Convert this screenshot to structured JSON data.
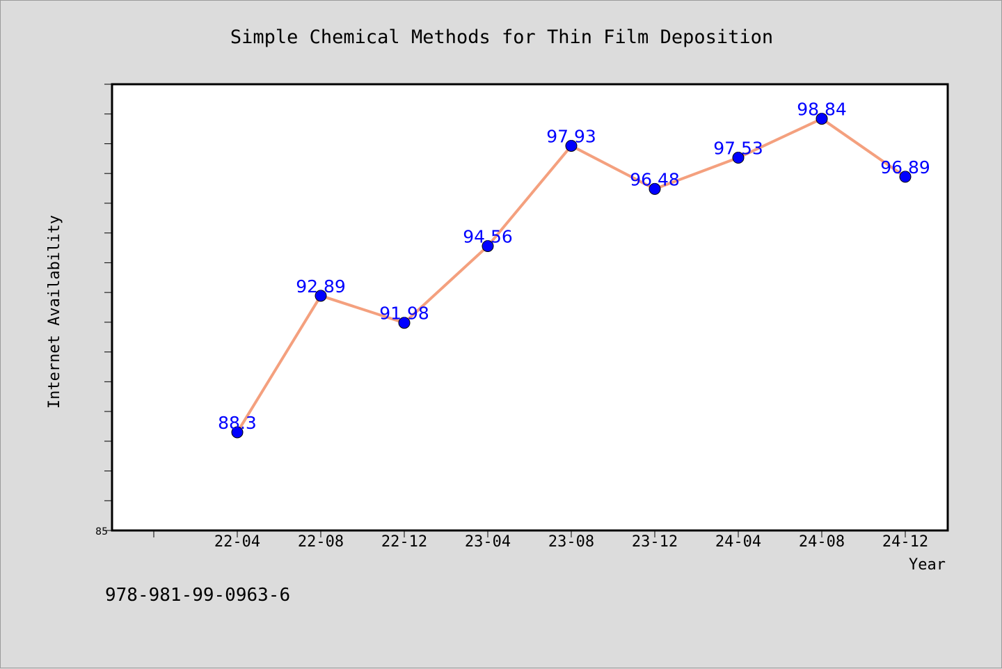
{
  "chart_data": {
    "type": "line",
    "title": "Simple Chemical Methods for Thin Film Deposition",
    "xlabel": "Year",
    "ylabel": "Internet Availability",
    "categories": [
      "22-04",
      "22-08",
      "22-12",
      "23-04",
      "23-08",
      "23-12",
      "24-04",
      "24-08",
      "24-12"
    ],
    "series": [
      {
        "values": [
          88.3,
          92.89,
          91.98,
          94.56,
          97.93,
          96.48,
          97.53,
          98.84,
          96.89
        ],
        "labels": [
          "88.3",
          "92.89",
          "91.98",
          "94.56",
          "97.93",
          "96.48",
          "97.53",
          "98.84",
          "96.89"
        ],
        "line_color": "#f4a07e",
        "marker_color": "#0000ff"
      }
    ],
    "ylim": [
      85,
      100
    ],
    "y_tick_labels": [
      "85"
    ],
    "grid": false,
    "legend": "none"
  },
  "footer": {
    "isbn": "978-981-99-0963-6"
  }
}
